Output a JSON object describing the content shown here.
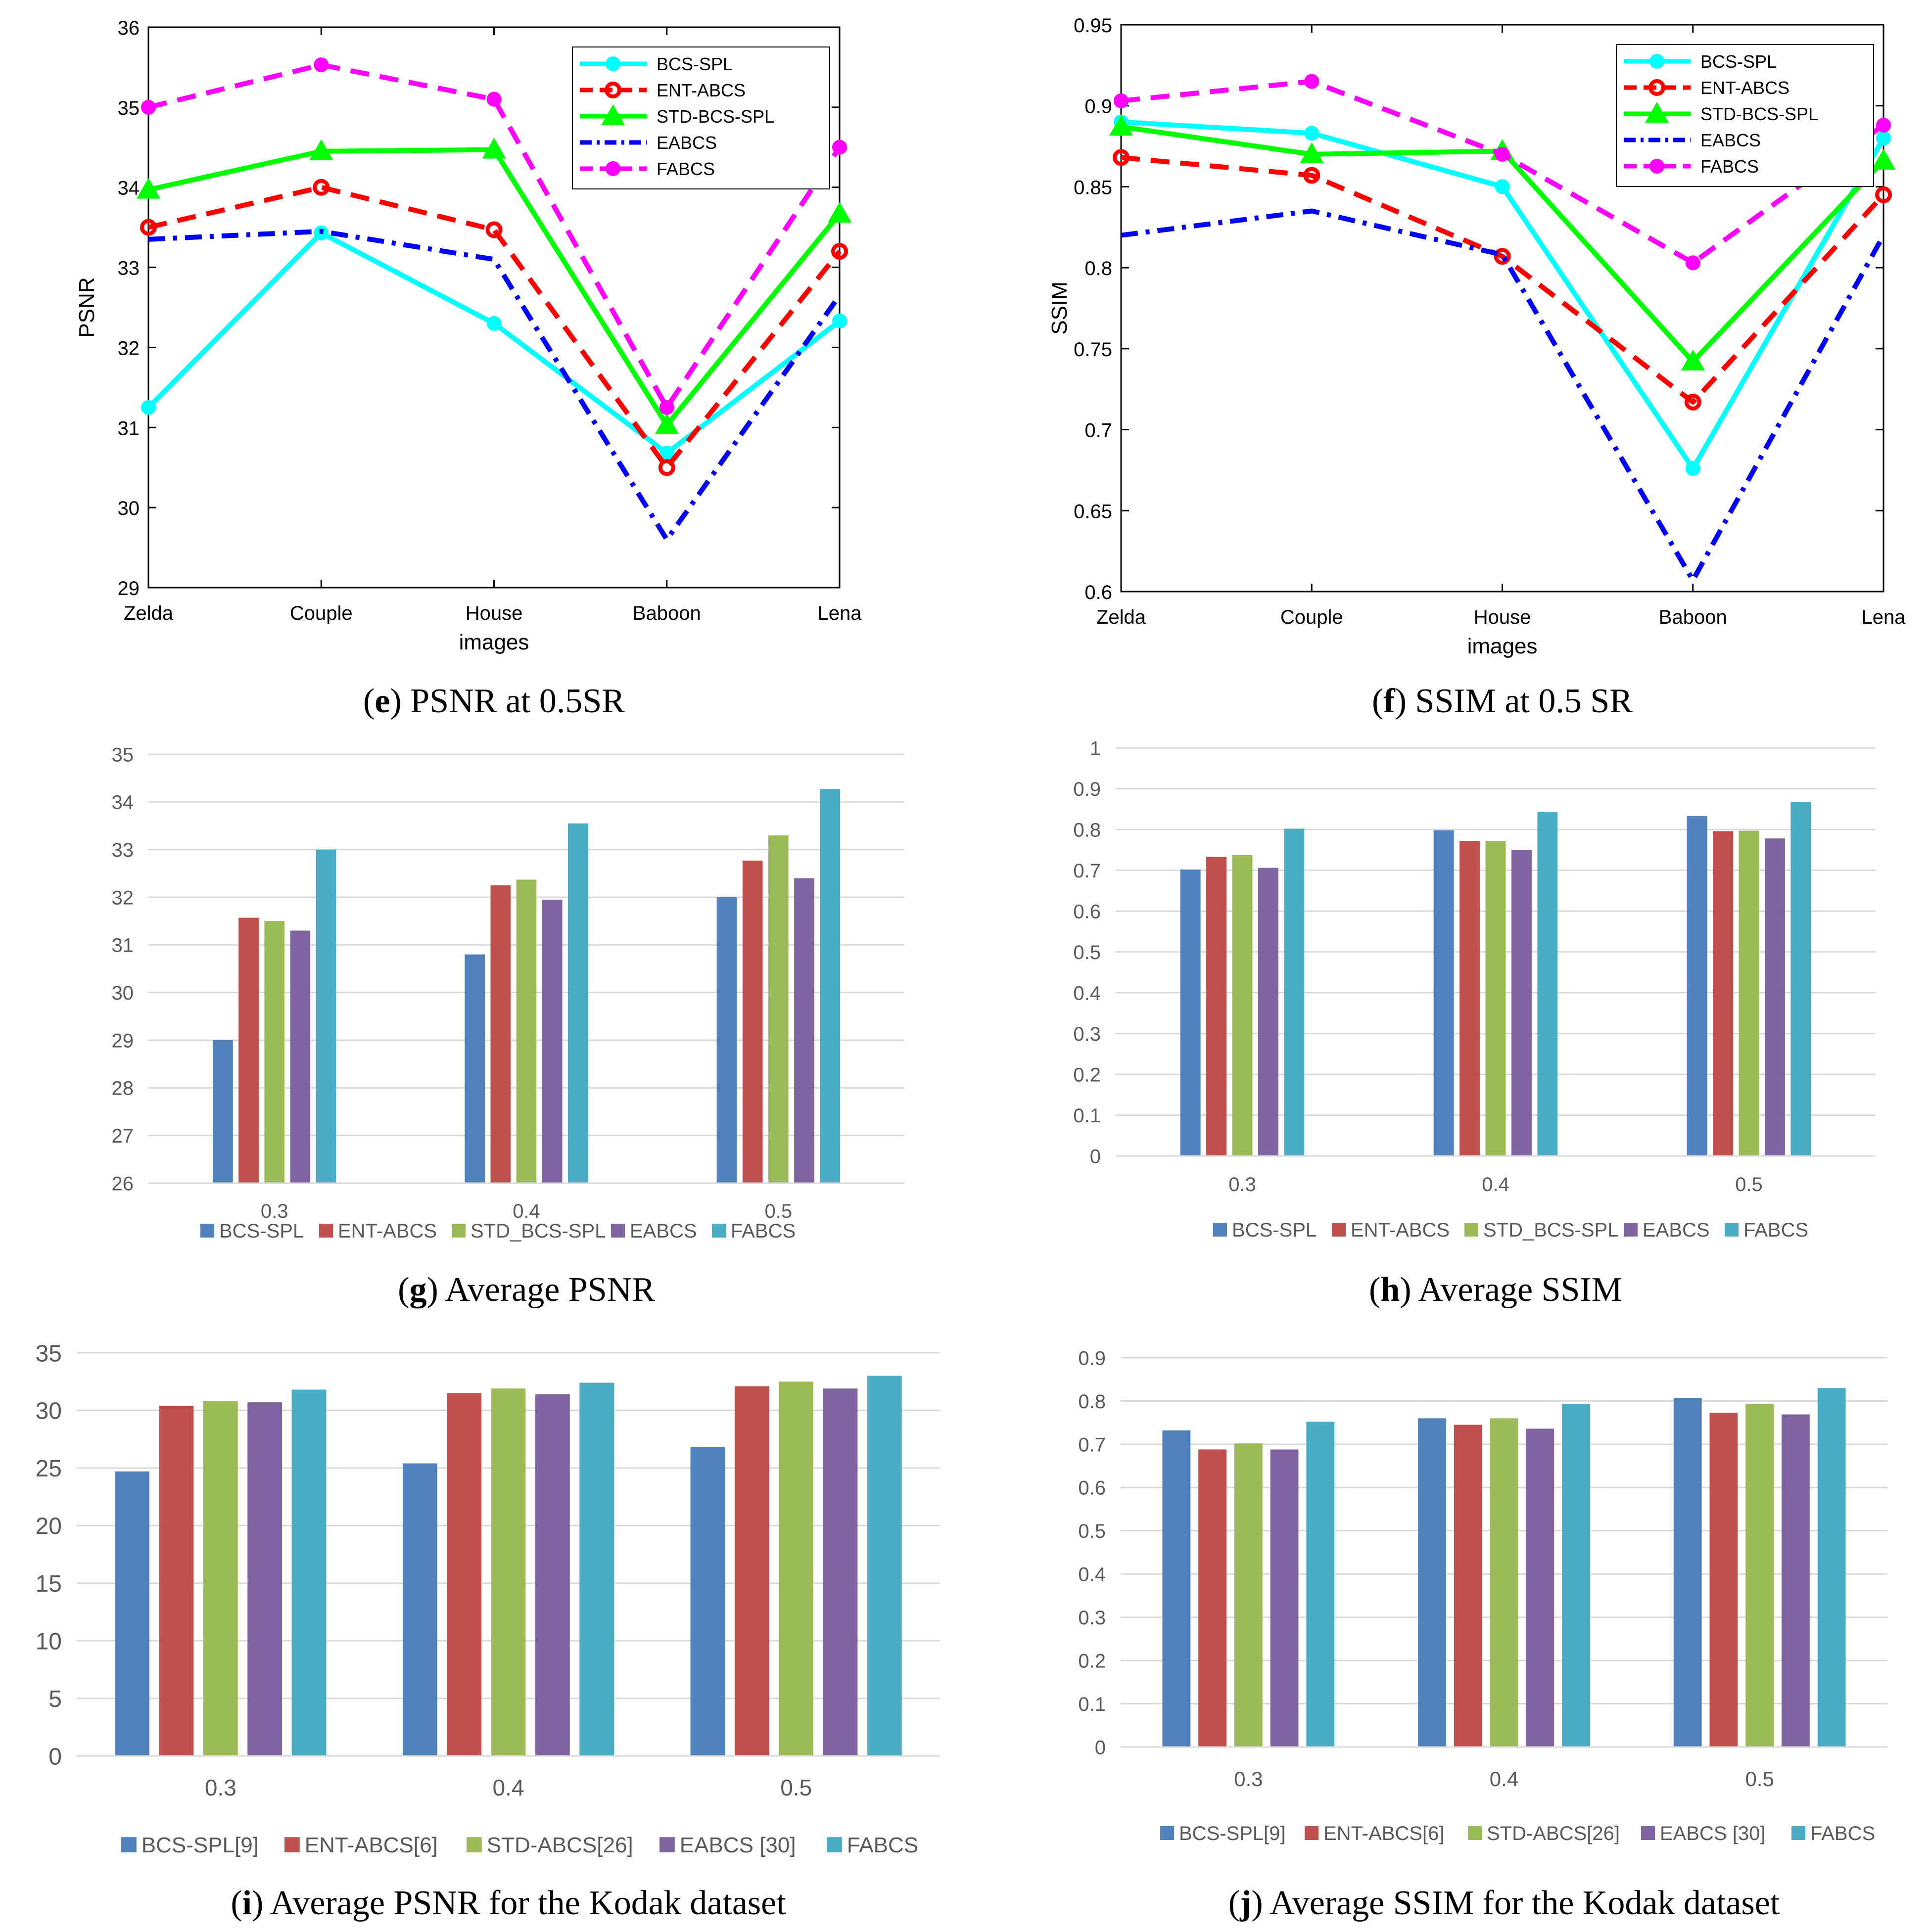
{
  "chart_data": [
    {
      "panel": "e",
      "type": "line",
      "caption_letter": "e",
      "caption_text": "PSNR at 0.5SR",
      "ylabel": "PSNR",
      "xlabel": "images",
      "categories": [
        "Zelda",
        "Couple",
        "House",
        "Baboon",
        "Lena"
      ],
      "ylim": [
        29,
        36
      ],
      "yticks": [
        "29",
        "30",
        "31",
        "32",
        "33",
        "34",
        "35",
        "36"
      ],
      "grid": false,
      "legend_position": "top-right",
      "series": [
        {
          "name": "BCS-SPL",
          "color": "#00ffff",
          "dash": "solid",
          "marker": "dot",
          "values": [
            31.25,
            33.43,
            32.3,
            30.68,
            32.33
          ]
        },
        {
          "name": "ENT-ABCS",
          "color": "#ff0000",
          "dash": "dash",
          "marker": "ring",
          "values": [
            33.5,
            34.0,
            33.47,
            30.5,
            33.2
          ]
        },
        {
          "name": "STD-BCS-SPL",
          "color": "#00ff00",
          "dash": "solid",
          "marker": "triangle",
          "values": [
            33.97,
            34.45,
            34.47,
            31.03,
            33.67
          ]
        },
        {
          "name": "EABCS",
          "color": "#0000ff",
          "dash": "dashdot",
          "marker": "none",
          "values": [
            33.35,
            33.45,
            33.1,
            29.6,
            32.65
          ]
        },
        {
          "name": "FABCS",
          "color": "#ff00ff",
          "dash": "dash",
          "marker": "dot",
          "values": [
            35.0,
            35.53,
            35.1,
            31.25,
            34.5
          ]
        }
      ]
    },
    {
      "panel": "f",
      "type": "line",
      "caption_letter": "f",
      "caption_text": "SSIM at 0.5 SR",
      "ylabel": "SSIM",
      "xlabel": "images",
      "categories": [
        "Zelda",
        "Couple",
        "House",
        "Baboon",
        "Lena"
      ],
      "ylim": [
        0.6,
        0.95
      ],
      "yticks": [
        "0.6",
        "0.65",
        "0.7",
        "0.75",
        "0.8",
        "0.85",
        "0.9",
        "0.95"
      ],
      "grid": false,
      "legend_position": "top-right",
      "series": [
        {
          "name": "BCS-SPL",
          "color": "#00ffff",
          "dash": "solid",
          "marker": "dot",
          "values": [
            0.89,
            0.883,
            0.85,
            0.676,
            0.88
          ]
        },
        {
          "name": "ENT-ABCS",
          "color": "#ff0000",
          "dash": "dash",
          "marker": "ring",
          "values": [
            0.868,
            0.857,
            0.807,
            0.717,
            0.845
          ]
        },
        {
          "name": "STD-BCS-SPL",
          "color": "#00ff00",
          "dash": "solid",
          "marker": "triangle",
          "values": [
            0.887,
            0.87,
            0.872,
            0.742,
            0.866
          ]
        },
        {
          "name": "EABCS",
          "color": "#0000ff",
          "dash": "dashdot",
          "marker": "none",
          "values": [
            0.82,
            0.835,
            0.808,
            0.607,
            0.82
          ]
        },
        {
          "name": "FABCS",
          "color": "#ff00ff",
          "dash": "dash",
          "marker": "dot",
          "values": [
            0.903,
            0.915,
            0.87,
            0.803,
            0.888
          ]
        }
      ]
    },
    {
      "panel": "g",
      "type": "bar",
      "caption_letter": "g",
      "caption_text": "Average PSNR",
      "categories": [
        "0.3",
        "0.4",
        "0.5"
      ],
      "ylim": [
        26,
        35
      ],
      "yticks": [
        "26",
        "27",
        "28",
        "29",
        "30",
        "31",
        "32",
        "33",
        "34",
        "35"
      ],
      "grid": true,
      "legend_position": "bottom",
      "series": [
        {
          "name": "BCS-SPL",
          "color": "#4f81bd",
          "values": [
            29.0,
            30.8,
            32.0
          ]
        },
        {
          "name": "ENT-ABCS",
          "color": "#c0504d",
          "values": [
            31.57,
            32.25,
            32.77
          ]
        },
        {
          "name": "STD_BCS-SPL",
          "color": "#9bbb59",
          "values": [
            31.5,
            32.37,
            33.3
          ]
        },
        {
          "name": "EABCS",
          "color": "#8064a2",
          "values": [
            31.3,
            31.95,
            32.4
          ]
        },
        {
          "name": "FABCS",
          "color": "#4bacc6",
          "values": [
            33.0,
            33.55,
            34.27
          ]
        }
      ]
    },
    {
      "panel": "h",
      "type": "bar",
      "caption_letter": "h",
      "caption_text": "Average SSIM",
      "categories": [
        "0.3",
        "0.4",
        "0.5"
      ],
      "ylim": [
        0,
        1
      ],
      "yticks": [
        "0",
        "0.1",
        "0.2",
        "0.3",
        "0.4",
        "0.5",
        "0.6",
        "0.7",
        "0.8",
        "0.9",
        "1"
      ],
      "grid": true,
      "legend_position": "bottom",
      "series": [
        {
          "name": "BCS-SPL",
          "color": "#4f81bd",
          "values": [
            0.702,
            0.798,
            0.833
          ]
        },
        {
          "name": "ENT-ABCS",
          "color": "#c0504d",
          "values": [
            0.733,
            0.772,
            0.796
          ]
        },
        {
          "name": "STD_BCS-SPL",
          "color": "#9bbb59",
          "values": [
            0.737,
            0.772,
            0.797
          ]
        },
        {
          "name": "EABCS",
          "color": "#8064a2",
          "values": [
            0.706,
            0.75,
            0.778
          ]
        },
        {
          "name": "FABCS",
          "color": "#4bacc6",
          "values": [
            0.802,
            0.843,
            0.868
          ]
        }
      ]
    },
    {
      "panel": "i",
      "type": "bar",
      "caption_letter": "i",
      "caption_text": "Average PSNR for the Kodak dataset",
      "categories": [
        "0.3",
        "0.4",
        "0.5"
      ],
      "ylim": [
        0,
        35
      ],
      "yticks": [
        "0",
        "5",
        "10",
        "15",
        "20",
        "25",
        "30",
        "35"
      ],
      "grid": true,
      "legend_position": "bottom",
      "series": [
        {
          "name": "BCS-SPL[9]",
          "color": "#4f81bd",
          "values": [
            24.7,
            25.4,
            26.8
          ]
        },
        {
          "name": "ENT-ABCS[6]",
          "color": "#c0504d",
          "values": [
            30.4,
            31.5,
            32.1
          ]
        },
        {
          "name": "STD-ABCS[26]",
          "color": "#9bbb59",
          "values": [
            30.8,
            31.9,
            32.5
          ]
        },
        {
          "name": "EABCS [30]",
          "color": "#8064a2",
          "values": [
            30.7,
            31.4,
            31.9
          ]
        },
        {
          "name": "FABCS",
          "color": "#4bacc6",
          "values": [
            31.8,
            32.4,
            33.0
          ]
        }
      ]
    },
    {
      "panel": "j",
      "type": "bar",
      "caption_letter": "j",
      "caption_text": "Average SSIM for the Kodak dataset",
      "categories": [
        "0.3",
        "0.4",
        "0.5"
      ],
      "ylim": [
        0,
        0.9
      ],
      "yticks": [
        "0",
        "0.1",
        "0.2",
        "0.3",
        "0.4",
        "0.5",
        "0.6",
        "0.7",
        "0.8",
        "0.9"
      ],
      "grid": true,
      "legend_position": "bottom",
      "series": [
        {
          "name": "BCS-SPL[9]",
          "color": "#4f81bd",
          "values": [
            0.732,
            0.76,
            0.807
          ]
        },
        {
          "name": "ENT-ABCS[6]",
          "color": "#c0504d",
          "values": [
            0.688,
            0.745,
            0.773
          ]
        },
        {
          "name": "STD-ABCS[26]",
          "color": "#9bbb59",
          "values": [
            0.702,
            0.76,
            0.793
          ]
        },
        {
          "name": "EABCS [30]",
          "color": "#8064a2",
          "values": [
            0.688,
            0.736,
            0.769
          ]
        },
        {
          "name": "FABCS",
          "color": "#4bacc6",
          "values": [
            0.752,
            0.793,
            0.83
          ]
        }
      ]
    }
  ]
}
